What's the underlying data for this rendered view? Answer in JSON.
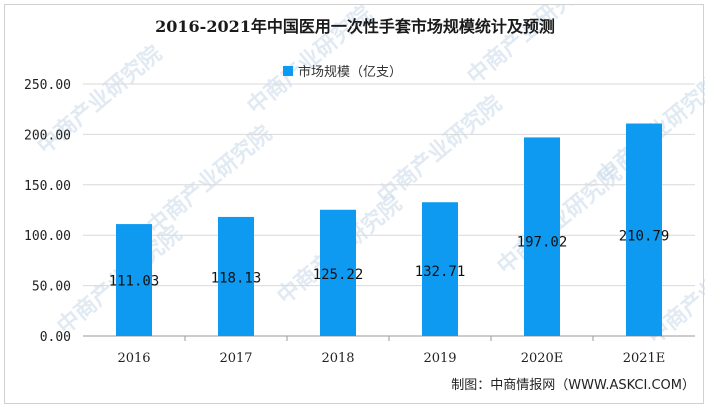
{
  "chart_data": {
    "type": "bar",
    "title": "2016-2021年中国医用一次性手套市场规模统计及预测",
    "categories": [
      "2016",
      "2017",
      "2018",
      "2019",
      "2020E",
      "2021E"
    ],
    "series": [
      {
        "name": "市场规模（亿支）",
        "values": [
          111.03,
          118.13,
          125.22,
          132.71,
          197.02,
          210.79
        ]
      }
    ],
    "data_labels": [
      "111.03",
      "118.13",
      "125.22",
      "132.71",
      "197.02",
      "210.79"
    ],
    "y_ticks": [
      "0.00",
      "50.00",
      "100.00",
      "150.00",
      "200.00",
      "250.00"
    ],
    "ylim": [
      0,
      250
    ],
    "grid": true,
    "legend_position": "top-center",
    "bar_color": "#0e9af0"
  },
  "source": "制图：中商情报网（WWW.ASKCI.COM）",
  "watermark": "中商产业研究院"
}
